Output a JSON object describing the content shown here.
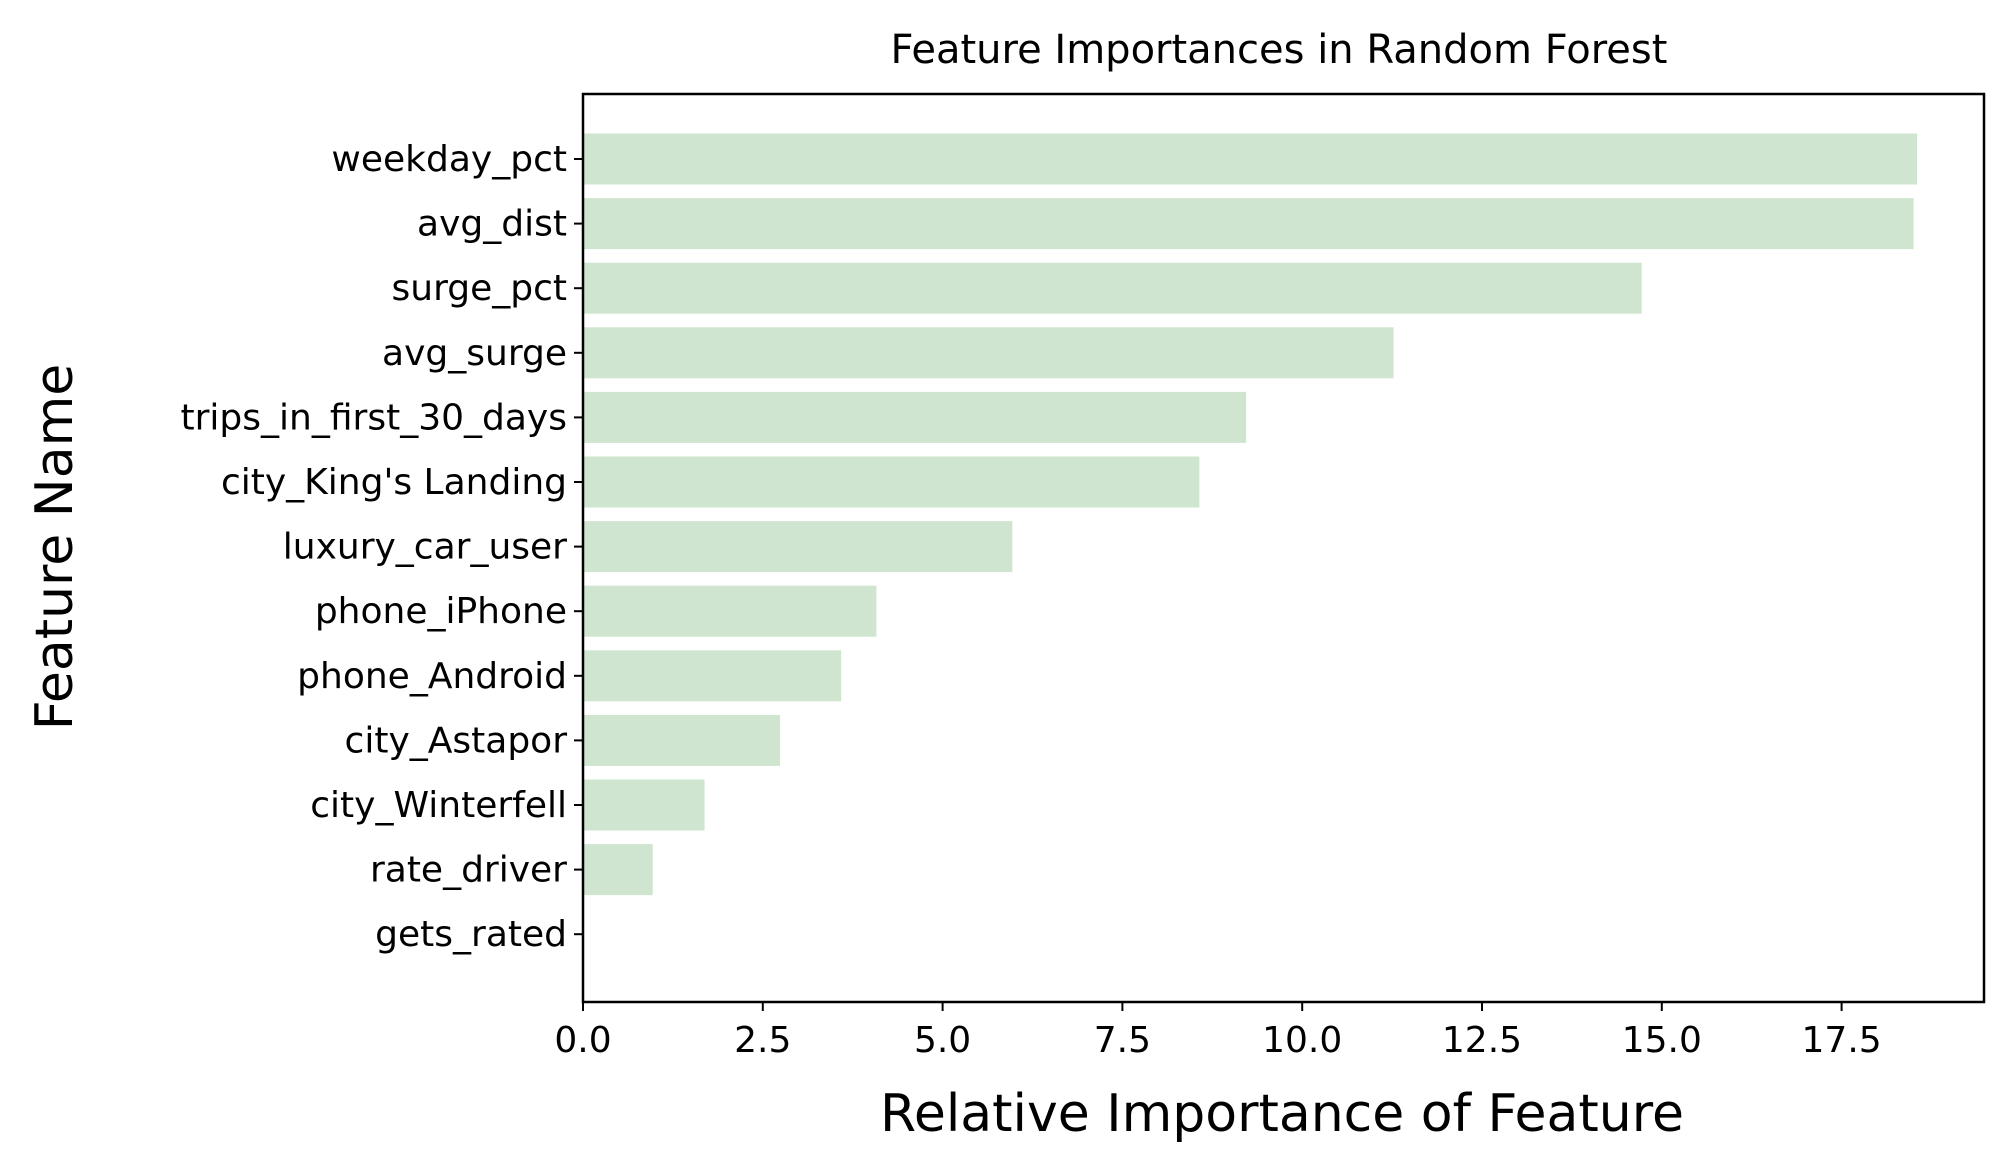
{
  "chart_data": {
    "type": "bar",
    "orientation": "horizontal",
    "title": "Feature Importances in Random Forest",
    "xlabel": "Relative Importance of Feature",
    "ylabel": "Feature Name",
    "categories": [
      "weekday_pct",
      "avg_dist",
      "surge_pct",
      "avg_surge",
      "trips_in_first_30_days",
      "city_King's Landing",
      "luxury_car_user",
      "phone_iPhone",
      "phone_Android",
      "city_Astapor",
      "city_Winterfell",
      "rate_driver",
      "gets_rated"
    ],
    "values": [
      18.55,
      18.5,
      14.72,
      11.27,
      9.22,
      8.57,
      5.97,
      4.08,
      3.59,
      2.74,
      1.69,
      0.97,
      0.0
    ],
    "xlim": [
      0,
      19.48
    ],
    "xticks": [
      0.0,
      2.5,
      5.0,
      7.5,
      10.0,
      12.5,
      15.0,
      17.5
    ],
    "xtick_labels": [
      "0.0",
      "2.5",
      "5.0",
      "7.5",
      "10.0",
      "12.5",
      "15.0",
      "17.5"
    ],
    "bar_color": "#cfe5cf",
    "grid": false,
    "legend": "none"
  }
}
